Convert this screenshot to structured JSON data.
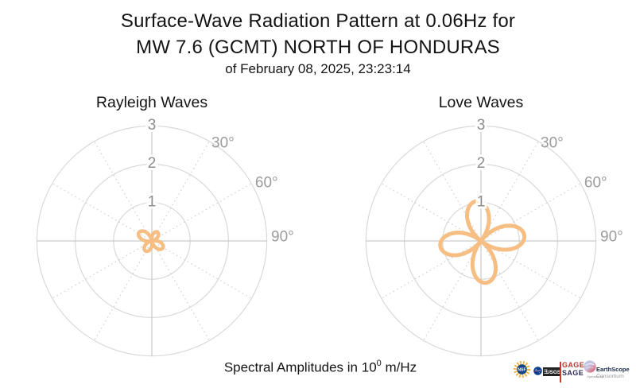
{
  "header": {
    "title_line1": "Surface-Wave Radiation Pattern at 0.06Hz for",
    "title_line2": "MW 7.6 (GCMT) NORTH OF HONDURAS",
    "subtitle": "of February 08, 2025, 23:23:14"
  },
  "chart_data": [
    {
      "type": "polar_line",
      "title": "Rayleigh Waves",
      "r_ticks": [
        1,
        2,
        3
      ],
      "r_max": 3,
      "angle_ticks_deg": [
        30,
        60,
        90
      ],
      "angle_tick_labels": [
        "30°",
        "60°",
        "90°"
      ],
      "spokes_every_deg": 30,
      "grid": true,
      "units": "10^0 m/Hz",
      "series": [
        {
          "name": "rayleigh-radiation-pattern",
          "pattern": "four-lobe rose r = A_k * |cos(2*(azimuth - azimuth_0))|",
          "lobe_azimuths_deg": [
            33,
            123,
            213,
            303
          ],
          "lobe_amplitudes": [
            0.27,
            0.34,
            0.31,
            0.4
          ],
          "color": "#F6BE82",
          "line_width": 4.5
        }
      ]
    },
    {
      "type": "polar_line",
      "title": "Love Waves",
      "r_ticks": [
        1,
        2,
        3
      ],
      "r_max": 3,
      "angle_ticks_deg": [
        30,
        60,
        90
      ],
      "angle_tick_labels": [
        "30°",
        "60°",
        "90°"
      ],
      "spokes_every_deg": 30,
      "grid": true,
      "units": "10^0 m/Hz",
      "series": [
        {
          "name": "love-radiation-pattern",
          "pattern": "four-lobe rose r = A_k * |cos(2*(azimuth - azimuth_0))|",
          "lobe_azimuths_deg": [
            -7,
            83,
            173,
            263
          ],
          "lobe_amplitudes": [
            1.04,
            1.14,
            1.1,
            1.07
          ],
          "color": "#F6BE82",
          "line_width": 5
        }
      ]
    }
  ],
  "footer": {
    "caption_prefix": "Spectral Amplitudes in 10",
    "caption_exponent": "0",
    "caption_suffix": " m/Hz",
    "logos": {
      "nsf": "NSF",
      "nasa": "NASA",
      "usgs": "USGS",
      "gage": "GAGE",
      "sage": "SAGE",
      "earthscope_name": "EarthScope",
      "earthscope_sub": "Consortium",
      "operated_by": "Operated by"
    }
  },
  "colors": {
    "pattern": "#F6BE82",
    "grid_circle": "#D9D9D9",
    "axis_line": "#C9C9C9",
    "spoke_dotted": "#CCCCCC",
    "r_tick_label": "#8C8C8C",
    "angle_label": "#9C9C9C",
    "gage_red": "#B5352F",
    "sage_navy": "#2F2D5E",
    "divider_red": "#CC3B33"
  }
}
